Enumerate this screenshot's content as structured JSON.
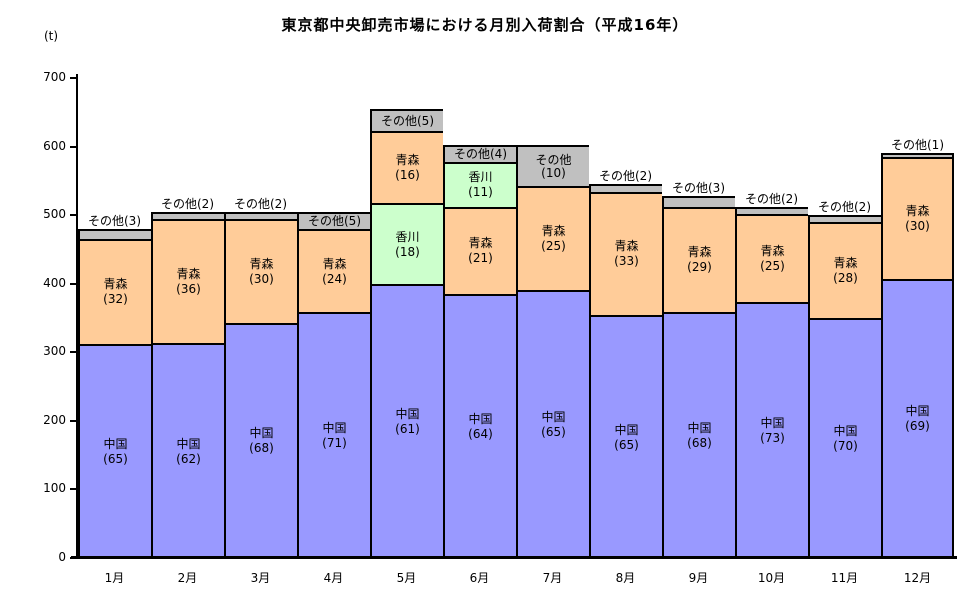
{
  "chart_data": {
    "type": "bar",
    "stacked": true,
    "title": "東京都中央卸売市場における月別入荷割合（平成16年）",
    "y_unit": "(t)",
    "xlabel": "",
    "ylabel": "(t)",
    "ylim": [
      0,
      700
    ],
    "yticks": [
      0,
      100,
      200,
      300,
      400,
      500,
      600,
      700
    ],
    "grid": false,
    "legend": "none",
    "categories": [
      "1月",
      "2月",
      "3月",
      "4月",
      "5月",
      "6月",
      "7月",
      "8月",
      "9月",
      "10月",
      "11月",
      "12月"
    ],
    "values_are": "percent-share labels shown in parentheses; bar heights are tonnage (t)",
    "series": [
      {
        "name": "中国",
        "values": [
          65,
          62,
          68,
          71,
          61,
          64,
          65,
          65,
          68,
          73,
          70,
          69
        ]
      },
      {
        "name": "青森",
        "values": [
          32,
          36,
          30,
          24,
          16,
          21,
          25,
          33,
          29,
          25,
          28,
          30
        ]
      },
      {
        "name": "香川",
        "values": [
          0,
          0,
          0,
          0,
          18,
          11,
          0,
          0,
          0,
          0,
          0,
          0
        ]
      },
      {
        "name": "その他",
        "values": [
          3,
          2,
          2,
          5,
          5,
          4,
          10,
          2,
          3,
          2,
          2,
          1
        ]
      }
    ],
    "estimated_totals_t": [
      480,
      505,
      505,
      505,
      655,
      602,
      602,
      545,
      528,
      512,
      500,
      590
    ],
    "months": [
      {
        "label": "1月",
        "total_t": 480,
        "sonota_label": "above",
        "segments": [
          {
            "name": "中国",
            "pct": 65
          },
          {
            "name": "青森",
            "pct": 32
          },
          {
            "name": "その他",
            "pct": 3
          }
        ]
      },
      {
        "label": "2月",
        "total_t": 505,
        "sonota_label": "above",
        "segments": [
          {
            "name": "中国",
            "pct": 62
          },
          {
            "name": "青森",
            "pct": 36
          },
          {
            "name": "その他",
            "pct": 2
          }
        ]
      },
      {
        "label": "3月",
        "total_t": 505,
        "sonota_label": "above",
        "segments": [
          {
            "name": "中国",
            "pct": 68
          },
          {
            "name": "青森",
            "pct": 30
          },
          {
            "name": "その他",
            "pct": 2
          }
        ]
      },
      {
        "label": "4月",
        "total_t": 505,
        "sonota_label": "inside",
        "segments": [
          {
            "name": "中国",
            "pct": 71
          },
          {
            "name": "青森",
            "pct": 24
          },
          {
            "name": "その他",
            "pct": 5
          }
        ]
      },
      {
        "label": "5月",
        "total_t": 655,
        "sonota_label": "inside",
        "segments": [
          {
            "name": "中国",
            "pct": 61
          },
          {
            "name": "香川",
            "pct": 18
          },
          {
            "name": "青森",
            "pct": 16
          },
          {
            "name": "その他",
            "pct": 5
          }
        ]
      },
      {
        "label": "6月",
        "total_t": 602,
        "sonota_label": "inside",
        "segments": [
          {
            "name": "中国",
            "pct": 64
          },
          {
            "name": "青森",
            "pct": 21
          },
          {
            "name": "香川",
            "pct": 11
          },
          {
            "name": "その他",
            "pct": 4
          }
        ]
      },
      {
        "label": "7月",
        "total_t": 602,
        "sonota_label": "inside",
        "segments": [
          {
            "name": "中国",
            "pct": 65
          },
          {
            "name": "青森",
            "pct": 25
          },
          {
            "name": "その他",
            "pct": 10
          }
        ]
      },
      {
        "label": "8月",
        "total_t": 545,
        "sonota_label": "above",
        "segments": [
          {
            "name": "中国",
            "pct": 65
          },
          {
            "name": "青森",
            "pct": 33
          },
          {
            "name": "その他",
            "pct": 2
          }
        ]
      },
      {
        "label": "9月",
        "total_t": 528,
        "sonota_label": "above",
        "segments": [
          {
            "name": "中国",
            "pct": 68
          },
          {
            "name": "青森",
            "pct": 29
          },
          {
            "name": "その他",
            "pct": 3
          }
        ]
      },
      {
        "label": "10月",
        "total_t": 512,
        "sonota_label": "above",
        "segments": [
          {
            "name": "中国",
            "pct": 73
          },
          {
            "name": "青森",
            "pct": 25
          },
          {
            "name": "その他",
            "pct": 2
          }
        ]
      },
      {
        "label": "11月",
        "total_t": 500,
        "sonota_label": "above",
        "segments": [
          {
            "name": "中国",
            "pct": 70
          },
          {
            "name": "青森",
            "pct": 28
          },
          {
            "name": "その他",
            "pct": 2
          }
        ]
      },
      {
        "label": "12月",
        "total_t": 590,
        "sonota_label": "above",
        "segments": [
          {
            "name": "中国",
            "pct": 69
          },
          {
            "name": "青森",
            "pct": 30
          },
          {
            "name": "その他",
            "pct": 1
          }
        ]
      }
    ],
    "colors": {
      "中国": "#9999FF",
      "青森": "#FFCC99",
      "香川": "#CCFFCC",
      "その他": "#C0C0C0",
      "border": "#000000",
      "background": "#FFFFFF",
      "text": "#000000"
    }
  }
}
